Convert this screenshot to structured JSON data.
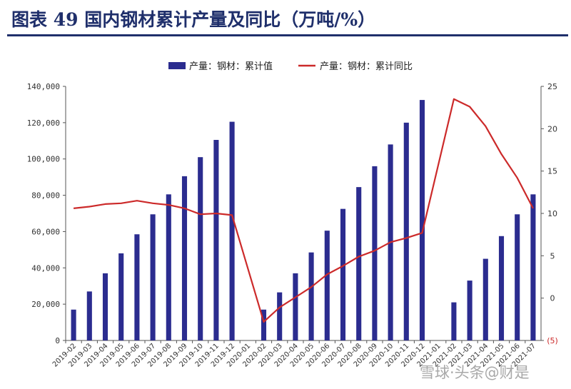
{
  "title": "图表 49 国内钢材累计产量及同比（万吨/%）",
  "watermark": "雪球·头条@财是",
  "colors": {
    "bar": "#2b2c8f",
    "line": "#cc2a2a",
    "title": "#1f2f6b"
  },
  "chart_data": {
    "type": "bar",
    "categories": [
      "2019-02",
      "2019-03",
      "2019-04",
      "2019-05",
      "2019-06",
      "2019-07",
      "2019-08",
      "2019-09",
      "2019-10",
      "2019-11",
      "2019-12",
      "2020-01",
      "2020-02",
      "2020-03",
      "2020-04",
      "2020-05",
      "2020-06",
      "2020-07",
      "2020-08",
      "2020-09",
      "2020-10",
      "2020-11",
      "2020-12",
      "2021-01",
      "2021-02",
      "2021-03",
      "2021-04",
      "2021-05",
      "2021-06",
      "2021-07"
    ],
    "series": [
      {
        "name": "产量：钢材：累计值",
        "type": "bar",
        "axis": "left",
        "values": [
          17000,
          27000,
          37000,
          48000,
          58500,
          69500,
          80500,
          90500,
          101000,
          110500,
          120500,
          null,
          17000,
          26500,
          37000,
          48500,
          60500,
          72500,
          84500,
          96000,
          108000,
          120000,
          132500,
          null,
          21000,
          33000,
          45000,
          57500,
          69500,
          80500
        ]
      },
      {
        "name": "产量：钢材：累计同比",
        "type": "line",
        "axis": "right",
        "values": [
          10.6,
          10.8,
          11.1,
          11.2,
          11.5,
          11.2,
          11.0,
          10.6,
          9.9,
          10.0,
          9.8,
          null,
          -2.8,
          -1.1,
          0.1,
          1.3,
          2.8,
          3.8,
          4.9,
          5.6,
          6.6,
          7.1,
          7.7,
          null,
          23.5,
          22.6,
          20.3,
          17.0,
          14.2,
          10.6
        ]
      }
    ],
    "y_left": {
      "ylim": [
        0,
        140000
      ],
      "ticks": [
        "0",
        "20,000",
        "40,000",
        "60,000",
        "80,000",
        "100,000",
        "120,000",
        "140,000"
      ]
    },
    "y_right": {
      "ylim": [
        -5,
        25
      ],
      "ticks": [
        "(5)",
        "0",
        "5",
        "10",
        "15",
        "20",
        "25"
      ]
    },
    "legend_position": "top-center",
    "grid": false
  }
}
